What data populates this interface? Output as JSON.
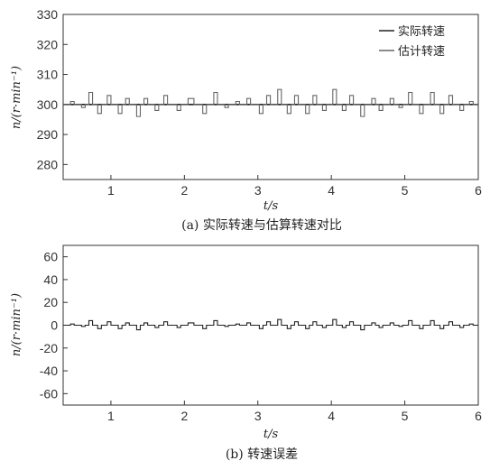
{
  "chart_data": [
    {
      "id": "a",
      "type": "line",
      "caption": "(a) 实际转速与估算转速对比",
      "xlabel": "t/s",
      "ylabel": "n/(r·min⁻¹)",
      "xlim": [
        0.35,
        6.0
      ],
      "ylim": [
        275,
        330
      ],
      "xticks": [
        1,
        2,
        3,
        4,
        5,
        6
      ],
      "yticks": [
        280,
        290,
        300,
        310,
        320,
        330
      ],
      "grid": false,
      "legend_position": "top-right",
      "series": [
        {
          "name": "实际转速",
          "color": "#222222",
          "style": "solid",
          "x": [
            0.35,
            6.0
          ],
          "y": [
            300,
            300
          ]
        },
        {
          "name": "估计转速",
          "color": "#666666",
          "style": "square-wave",
          "baseline": 300,
          "pulses": [
            {
              "x": 0.45,
              "w": 0.05,
              "y": 301
            },
            {
              "x": 0.6,
              "w": 0.05,
              "y": 299
            },
            {
              "x": 0.7,
              "w": 0.05,
              "y": 304
            },
            {
              "x": 0.82,
              "w": 0.05,
              "y": 297
            },
            {
              "x": 0.95,
              "w": 0.05,
              "y": 303
            },
            {
              "x": 1.1,
              "w": 0.05,
              "y": 297
            },
            {
              "x": 1.2,
              "w": 0.05,
              "y": 302
            },
            {
              "x": 1.35,
              "w": 0.05,
              "y": 296
            },
            {
              "x": 1.45,
              "w": 0.05,
              "y": 302
            },
            {
              "x": 1.6,
              "w": 0.05,
              "y": 298
            },
            {
              "x": 1.72,
              "w": 0.05,
              "y": 303
            },
            {
              "x": 1.9,
              "w": 0.05,
              "y": 298
            },
            {
              "x": 2.05,
              "w": 0.08,
              "y": 302
            },
            {
              "x": 2.25,
              "w": 0.05,
              "y": 297
            },
            {
              "x": 2.4,
              "w": 0.05,
              "y": 304
            },
            {
              "x": 2.55,
              "w": 0.05,
              "y": 299
            },
            {
              "x": 2.7,
              "w": 0.05,
              "y": 301
            },
            {
              "x": 2.85,
              "w": 0.05,
              "y": 302
            },
            {
              "x": 3.02,
              "w": 0.05,
              "y": 297
            },
            {
              "x": 3.12,
              "w": 0.05,
              "y": 303
            },
            {
              "x": 3.27,
              "w": 0.05,
              "y": 305
            },
            {
              "x": 3.4,
              "w": 0.05,
              "y": 297
            },
            {
              "x": 3.5,
              "w": 0.05,
              "y": 303
            },
            {
              "x": 3.65,
              "w": 0.05,
              "y": 297
            },
            {
              "x": 3.75,
              "w": 0.05,
              "y": 303
            },
            {
              "x": 3.88,
              "w": 0.05,
              "y": 298
            },
            {
              "x": 4.02,
              "w": 0.05,
              "y": 305
            },
            {
              "x": 4.15,
              "w": 0.05,
              "y": 298
            },
            {
              "x": 4.25,
              "w": 0.05,
              "y": 303
            },
            {
              "x": 4.4,
              "w": 0.05,
              "y": 296
            },
            {
              "x": 4.55,
              "w": 0.05,
              "y": 302
            },
            {
              "x": 4.65,
              "w": 0.05,
              "y": 298
            },
            {
              "x": 4.8,
              "w": 0.05,
              "y": 302
            },
            {
              "x": 4.92,
              "w": 0.05,
              "y": 299
            },
            {
              "x": 5.05,
              "w": 0.05,
              "y": 304
            },
            {
              "x": 5.2,
              "w": 0.05,
              "y": 297
            },
            {
              "x": 5.35,
              "w": 0.05,
              "y": 304
            },
            {
              "x": 5.48,
              "w": 0.05,
              "y": 297
            },
            {
              "x": 5.6,
              "w": 0.05,
              "y": 303
            },
            {
              "x": 5.75,
              "w": 0.05,
              "y": 298
            },
            {
              "x": 5.88,
              "w": 0.05,
              "y": 301
            }
          ]
        }
      ]
    },
    {
      "id": "b",
      "type": "line",
      "caption": "(b) 转速误差",
      "xlabel": "t/s",
      "ylabel": "n/(r·min⁻¹)",
      "xlim": [
        0.35,
        6.0
      ],
      "ylim": [
        -70,
        70
      ],
      "xticks": [
        1,
        2,
        3,
        4,
        5,
        6
      ],
      "yticks": [
        -60,
        -40,
        -20,
        0,
        20,
        40,
        60
      ],
      "grid": false,
      "series": [
        {
          "name": "",
          "color": "#222222",
          "style": "square-wave",
          "baseline": 0,
          "pulses": [
            {
              "x": 0.45,
              "w": 0.05,
              "y": 1
            },
            {
              "x": 0.6,
              "w": 0.05,
              "y": -1
            },
            {
              "x": 0.7,
              "w": 0.05,
              "y": 4
            },
            {
              "x": 0.82,
              "w": 0.05,
              "y": -3
            },
            {
              "x": 0.95,
              "w": 0.05,
              "y": 3
            },
            {
              "x": 1.1,
              "w": 0.05,
              "y": -3
            },
            {
              "x": 1.2,
              "w": 0.05,
              "y": 2
            },
            {
              "x": 1.35,
              "w": 0.05,
              "y": -4
            },
            {
              "x": 1.45,
              "w": 0.05,
              "y": 2
            },
            {
              "x": 1.6,
              "w": 0.05,
              "y": -2
            },
            {
              "x": 1.72,
              "w": 0.05,
              "y": 3
            },
            {
              "x": 1.9,
              "w": 0.05,
              "y": -2
            },
            {
              "x": 2.05,
              "w": 0.08,
              "y": 2
            },
            {
              "x": 2.25,
              "w": 0.05,
              "y": -3
            },
            {
              "x": 2.4,
              "w": 0.05,
              "y": 4
            },
            {
              "x": 2.55,
              "w": 0.05,
              "y": -1
            },
            {
              "x": 2.7,
              "w": 0.05,
              "y": 1
            },
            {
              "x": 2.85,
              "w": 0.05,
              "y": 2
            },
            {
              "x": 3.02,
              "w": 0.05,
              "y": -3
            },
            {
              "x": 3.12,
              "w": 0.05,
              "y": 3
            },
            {
              "x": 3.27,
              "w": 0.05,
              "y": 5
            },
            {
              "x": 3.4,
              "w": 0.05,
              "y": -3
            },
            {
              "x": 3.5,
              "w": 0.05,
              "y": 3
            },
            {
              "x": 3.65,
              "w": 0.05,
              "y": -3
            },
            {
              "x": 3.75,
              "w": 0.05,
              "y": 3
            },
            {
              "x": 3.88,
              "w": 0.05,
              "y": -2
            },
            {
              "x": 4.02,
              "w": 0.05,
              "y": 5
            },
            {
              "x": 4.15,
              "w": 0.05,
              "y": -2
            },
            {
              "x": 4.25,
              "w": 0.05,
              "y": 3
            },
            {
              "x": 4.4,
              "w": 0.05,
              "y": -4
            },
            {
              "x": 4.55,
              "w": 0.05,
              "y": 2
            },
            {
              "x": 4.65,
              "w": 0.05,
              "y": -2
            },
            {
              "x": 4.8,
              "w": 0.05,
              "y": 2
            },
            {
              "x": 4.92,
              "w": 0.05,
              "y": -1
            },
            {
              "x": 5.05,
              "w": 0.05,
              "y": 4
            },
            {
              "x": 5.2,
              "w": 0.05,
              "y": -3
            },
            {
              "x": 5.35,
              "w": 0.05,
              "y": 4
            },
            {
              "x": 5.48,
              "w": 0.05,
              "y": -3
            },
            {
              "x": 5.6,
              "w": 0.05,
              "y": 3
            },
            {
              "x": 5.75,
              "w": 0.05,
              "y": -2
            },
            {
              "x": 5.88,
              "w": 0.05,
              "y": 1
            }
          ]
        }
      ]
    }
  ]
}
